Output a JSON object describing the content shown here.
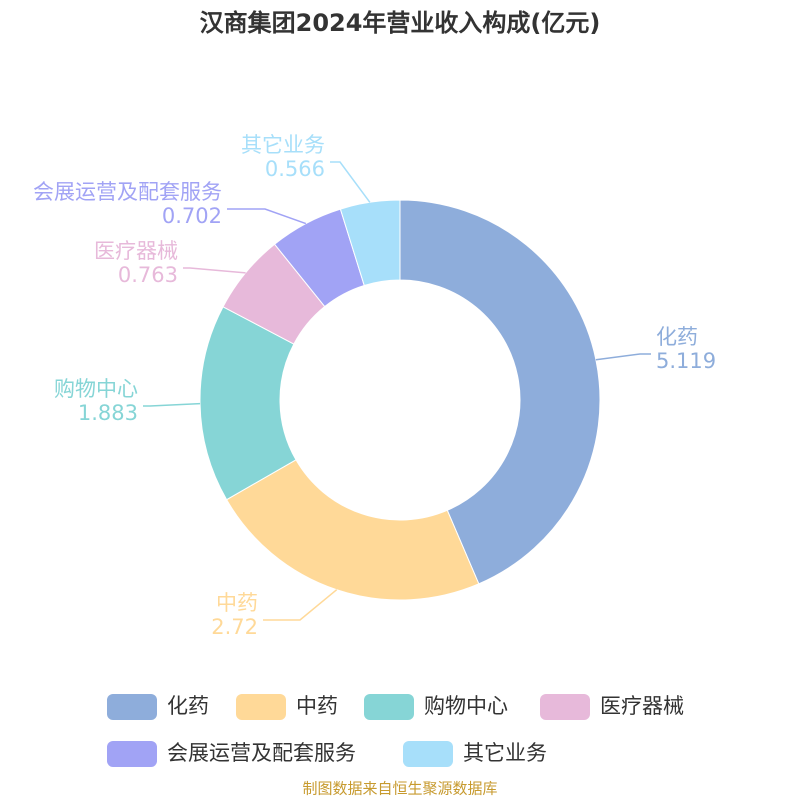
{
  "chart_data": {
    "type": "donut",
    "title": "汉商集团2024年营业收入构成(亿元)",
    "categories": [
      "化药",
      "中药",
      "购物中心",
      "医疗器械",
      "会展运营及配套服务",
      "其它业务"
    ],
    "values": [
      5.119,
      2.72,
      1.883,
      0.763,
      0.702,
      0.566
    ],
    "colors": [
      "#8eaddb",
      "#ffd998",
      "#86d5d6",
      "#e7b9da",
      "#a1a3f5",
      "#a7dffa"
    ],
    "source": "制图数据来自恒生聚源数据库"
  }
}
